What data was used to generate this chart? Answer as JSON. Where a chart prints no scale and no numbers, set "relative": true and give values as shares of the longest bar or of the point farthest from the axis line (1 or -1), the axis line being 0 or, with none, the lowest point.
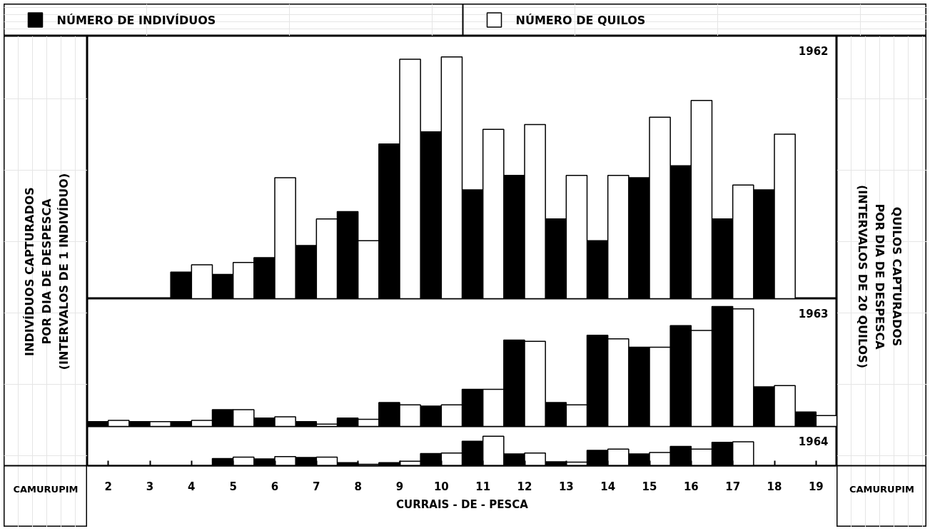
{
  "chart_data": [
    {
      "type": "bar",
      "title": "1962",
      "ylabel": "INDIVÍDUOS CAPTURADOS\nPOR DIA DE DESPESCA\n(INTERVALOS DE 1 INDIVÍDUO)",
      "y2label": "QUILOS CAPTURADOS\nPOR DIA DE DESPESCA\n(INTERVALOS DE 20 QUILOS)",
      "categories": [
        "2",
        "3",
        "4",
        "5",
        "6",
        "7",
        "8",
        "9",
        "10",
        "11",
        "12",
        "13",
        "14",
        "15",
        "16",
        "17",
        "18",
        "19"
      ],
      "relative": true,
      "legend": "top",
      "tick_labels": false,
      "series": [
        {
          "name": "NÚMERO DE INDIVÍDUOS",
          "color": "#000000",
          "values": [
            null,
            null,
            0.11,
            0.1,
            0.17,
            0.22,
            0.36,
            0.64,
            0.69,
            0.45,
            0.51,
            0.33,
            0.24,
            0.5,
            0.55,
            0.33,
            0.45,
            null
          ]
        },
        {
          "name": "NÚMERO DE QUILOS",
          "color": "#ffffff",
          "values": [
            null,
            null,
            0.14,
            0.15,
            0.5,
            0.33,
            0.24,
            0.99,
            1,
            0.7,
            0.72,
            0.51,
            0.51,
            0.75,
            0.82,
            0.47,
            0.68,
            null
          ]
        }
      ]
    },
    {
      "type": "bar",
      "title": "1963",
      "categories": [
        "2",
        "3",
        "4",
        "5",
        "6",
        "7",
        "8",
        "9",
        "10",
        "11",
        "12",
        "13",
        "14",
        "15",
        "16",
        "17",
        "18",
        "19"
      ],
      "relative": true,
      "tick_labels": false,
      "series": [
        {
          "color": "#000000",
          "values": [
            0.04,
            0.04,
            0.04,
            0.14,
            0.07,
            0.04,
            0.07,
            0.2,
            0.17,
            0.31,
            0.72,
            0.2,
            0.76,
            0.66,
            0.84,
            1,
            0.33,
            0.12
          ]
        },
        {
          "color": "#ffffff",
          "values": [
            0.05,
            0.04,
            0.05,
            0.14,
            0.08,
            0.02,
            0.06,
            0.18,
            0.18,
            0.31,
            0.71,
            0.18,
            0.73,
            0.66,
            0.8,
            0.98,
            0.34,
            0.09
          ]
        }
      ]
    },
    {
      "type": "bar",
      "title": "1964",
      "xlabel": "CURRAIS - DE - PESCA",
      "categories": [
        "2",
        "3",
        "4",
        "5",
        "6",
        "7",
        "8",
        "9",
        "10",
        "11",
        "12",
        "13",
        "14",
        "15",
        "16",
        "17",
        "18",
        "19"
      ],
      "relative": true,
      "tick_labels": "x",
      "annotations": [
        "CAMURUPIM",
        "CAMURUPIM"
      ],
      "series": [
        {
          "color": "#000000",
          "values": [
            null,
            null,
            null,
            0.24,
            0.23,
            0.28,
            0.1,
            0.1,
            0.41,
            0.83,
            0.4,
            0.13,
            0.52,
            0.4,
            0.65,
            0.79,
            null,
            null
          ]
        },
        {
          "color": "#ffffff",
          "values": [
            null,
            null,
            null,
            0.29,
            0.31,
            0.29,
            0.05,
            0.15,
            0.43,
            1,
            0.43,
            0.12,
            0.56,
            0.45,
            0.56,
            0.81,
            null,
            null
          ]
        }
      ]
    }
  ]
}
